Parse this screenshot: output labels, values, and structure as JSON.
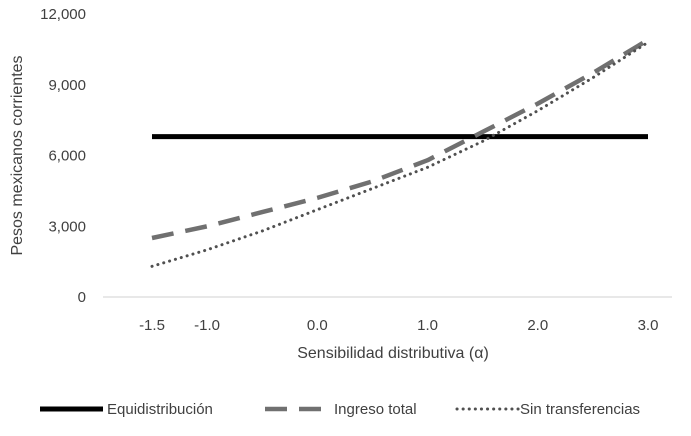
{
  "chart_data": {
    "type": "line",
    "xlabel": "Sensibilidad distributiva (α)",
    "ylabel": "Pesos mexicanos corrientes",
    "x": [
      -1.5,
      -1.0,
      -0.5,
      0.0,
      0.5,
      1.0,
      1.5,
      2.0,
      2.5,
      3.0
    ],
    "x_tick_labels": [
      "-1.5",
      "-1.0",
      "0.0",
      "1.0",
      "2.0",
      "3.0"
    ],
    "x_tick_positions": [
      -1.5,
      -1.0,
      0.0,
      1.0,
      2.0,
      3.0
    ],
    "xlim": [
      -1.5,
      3.0
    ],
    "ylim": [
      0,
      12000
    ],
    "y_ticks": [
      0,
      3000,
      6000,
      9000,
      12000
    ],
    "y_tick_labels": [
      "0",
      "3,000",
      "6,000",
      "9,000",
      "12,000"
    ],
    "grid": false,
    "legend_position": "bottom",
    "series": [
      {
        "name": "Equidistribución",
        "style": "solid",
        "color": "#000000",
        "values": [
          6800,
          6800,
          6800,
          6800,
          6800,
          6800,
          6800,
          6800,
          6800,
          6800
        ]
      },
      {
        "name": "Ingreso total",
        "style": "dashed",
        "color": "#707070",
        "values": [
          2500,
          3000,
          3600,
          4200,
          4900,
          5800,
          7000,
          8200,
          9500,
          10900
        ]
      },
      {
        "name": "Sin transferencias",
        "style": "dotted",
        "color": "#505050",
        "values": [
          1300,
          2000,
          2800,
          3700,
          4600,
          5500,
          6600,
          7900,
          9300,
          10800
        ]
      }
    ]
  }
}
